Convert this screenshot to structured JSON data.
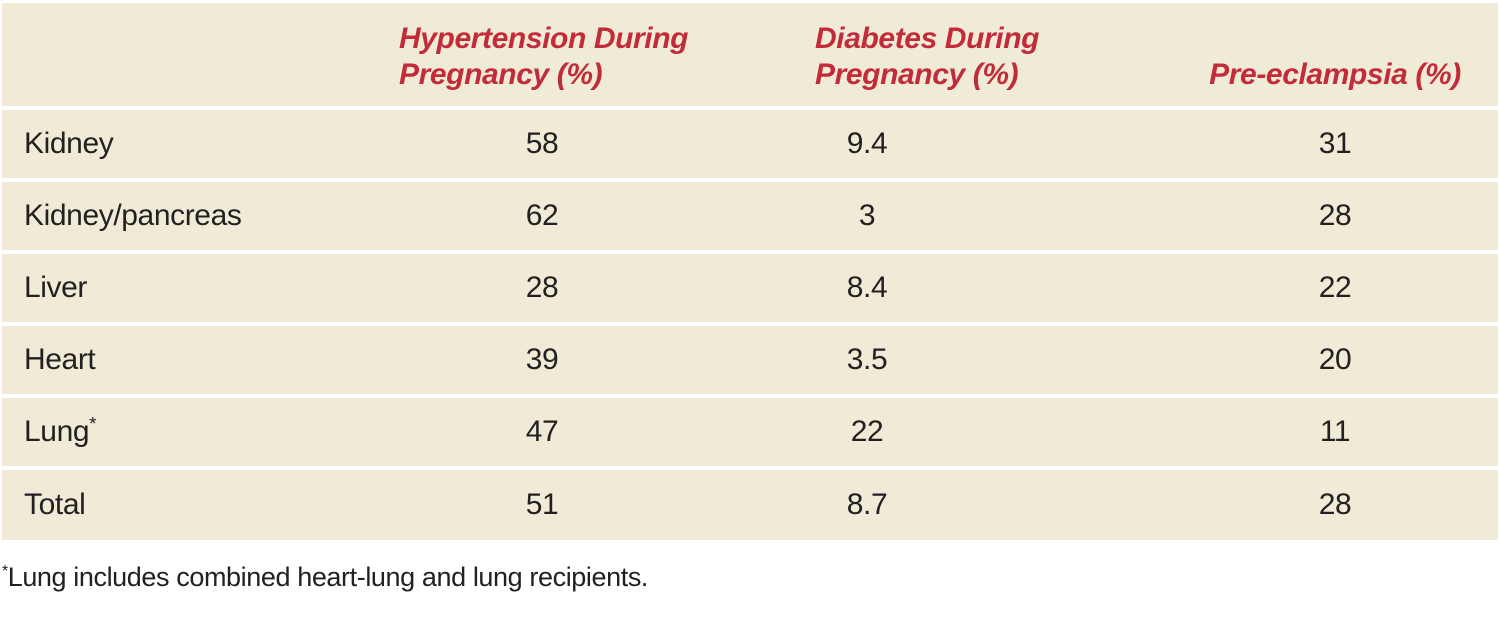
{
  "table": {
    "header": {
      "organ_column_label": "",
      "hypertension_line1": "Hypertension During",
      "hypertension_line2": "Pregnancy (%)",
      "diabetes_line1": "Diabetes During",
      "diabetes_line2": "Pregnancy (%)",
      "preeclampsia_label": "Pre-eclampsia (%)"
    },
    "rows": [
      {
        "organ": "Kidney",
        "marker": "",
        "hypertension": "58",
        "diabetes": "9.4",
        "preeclampsia": "31"
      },
      {
        "organ": "Kidney/pancreas",
        "marker": "",
        "hypertension": "62",
        "diabetes": "3",
        "preeclampsia": "28"
      },
      {
        "organ": "Liver",
        "marker": "",
        "hypertension": "28",
        "diabetes": "8.4",
        "preeclampsia": "22"
      },
      {
        "organ": "Heart",
        "marker": "",
        "hypertension": "39",
        "diabetes": "3.5",
        "preeclampsia": "20"
      },
      {
        "organ": "Lung",
        "marker": "*",
        "hypertension": "47",
        "diabetes": "22",
        "preeclampsia": "11"
      },
      {
        "organ": "Total",
        "marker": "",
        "hypertension": "51",
        "diabetes": "8.7",
        "preeclampsia": "28"
      }
    ],
    "footnote": {
      "marker": "*",
      "text": "Lung includes combined heart-lung and lung recipients."
    }
  },
  "colors": {
    "table_background": "#F0EBD6",
    "header_text": "#C32B3A",
    "body_text": "#242021",
    "row_separator": "#FFFFFF",
    "page_background": "#FFFFFF"
  }
}
